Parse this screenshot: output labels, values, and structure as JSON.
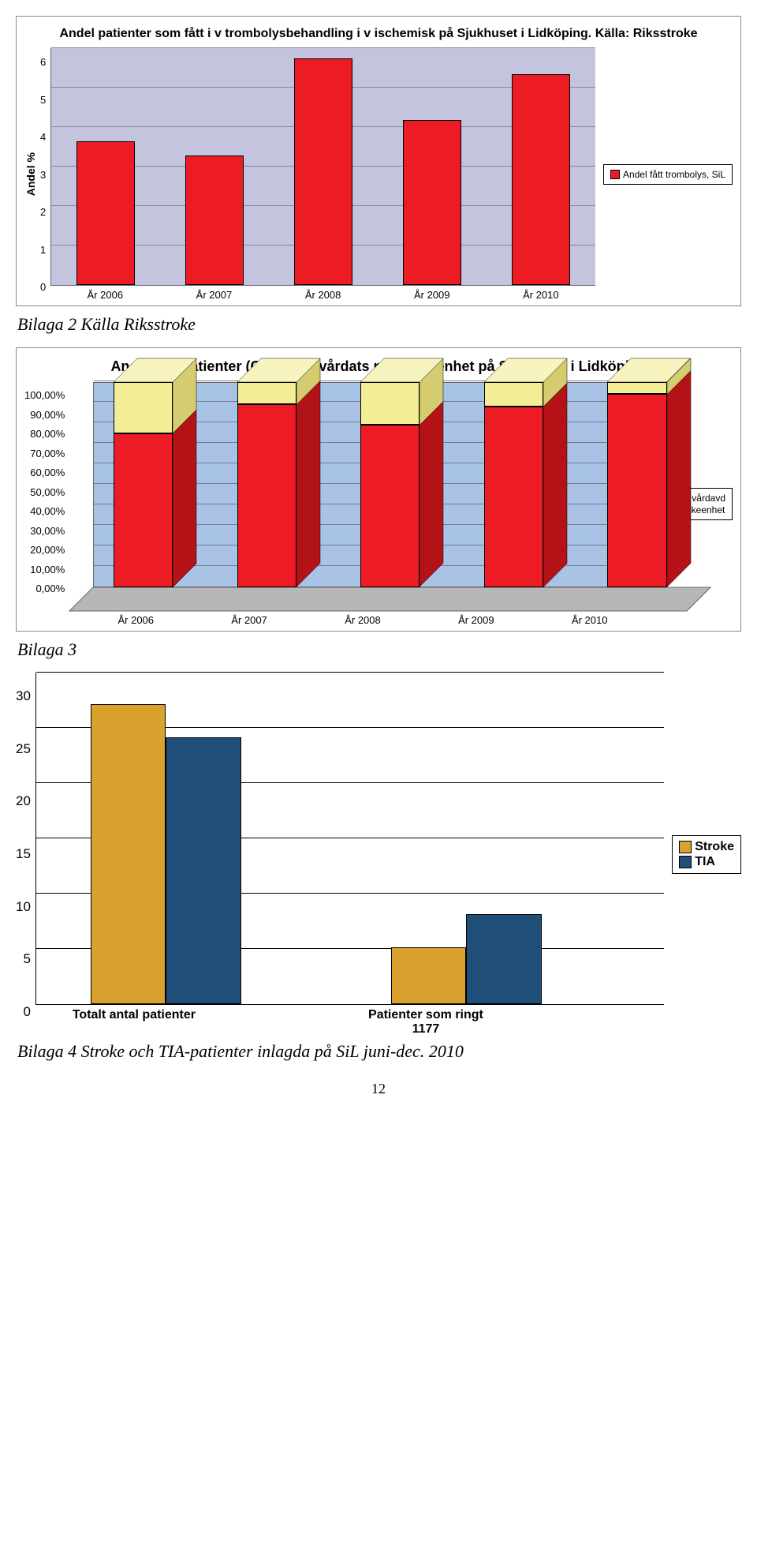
{
  "chart1": {
    "type": "bar",
    "title": "Andel patienter som fått i v trombolysbehandling i v ischemisk på Sjukhuset i Lidköping. Källa: Riksstroke",
    "title_fontsize": 16,
    "y_label": "Andel %",
    "y_label_fontsize": 14,
    "categories": [
      "År 2006",
      "År 2007",
      "År 2008",
      "År 2009",
      "År 2010"
    ],
    "values": [
      3.6,
      3.25,
      5.7,
      4.15,
      5.3
    ],
    "bar_color": "#ed1c24",
    "bar_width": 0.52,
    "ylim": [
      0,
      6
    ],
    "ytick_step": 1,
    "plot_background": "#c4c4de",
    "grid_color": "#86869e",
    "legend": {
      "color": "#ed1c24",
      "label": "Andel fått trombolys, SiL"
    },
    "frame_border": "#888888",
    "outer_background": "#ffffff"
  },
  "caption1": "Bilaga 2 Källa Riksstroke",
  "chart2": {
    "type": "stacked-bar-3d",
    "title": "Andel TIA-patienter (G45) som vårdats på strokeenhet på Sjukhuset i Lidköping",
    "title_fontsize": 18,
    "categories": [
      "År 2006",
      "År 2007",
      "År 2008",
      "År 2009",
      "År 2010"
    ],
    "series": [
      {
        "name": "Strokeenhet",
        "legend_label": "Strokeenhet",
        "color": "#ed1c24",
        "values": [
          75,
          89,
          79,
          88,
          94
        ]
      },
      {
        "name": "Övr vårdavd",
        "legend_label": "Övr vårdavd",
        "color": "#f3ed95",
        "values": [
          25,
          11,
          21,
          12,
          6
        ]
      }
    ],
    "ylim": [
      0,
      100
    ],
    "ytick_labels": [
      "0,00%",
      "10,00%",
      "20,00%",
      "30,00%",
      "40,00%",
      "50,00%",
      "60,00%",
      "70,00%",
      "80,00%",
      "90,00%",
      "100,00%"
    ],
    "back_wall_color": "#a9c3e6",
    "floor_color": "#b7b7b7",
    "grid_color": "#7a7a8a",
    "side_shade": "#b31217",
    "side_shade_top_series": "#d4cc6f",
    "top_shade": "#f8f4c0",
    "bar_width": 0.48
  },
  "caption2": "Bilaga 3",
  "chart3": {
    "type": "grouped-bar",
    "categories": [
      "Totalt antal patienter",
      "Patienter som ringt 1177"
    ],
    "series": [
      {
        "name": "Stroke",
        "legend_label": "Stroke",
        "color": "#d9a12e",
        "values": [
          27,
          5
        ]
      },
      {
        "name": "TIA",
        "legend_label": "TIA",
        "color": "#1f4e79",
        "values": [
          24,
          8
        ]
      }
    ],
    "ylim": [
      0,
      30
    ],
    "ytick_step": 5,
    "plot_background": "#ffffff",
    "grid_color": "#000000",
    "bar_border": "#000000",
    "bar_width": 0.36
  },
  "caption3": "Bilaga 4 Stroke och TIA-patienter inlagda på SiL juni-dec. 2010",
  "page_number": "12"
}
